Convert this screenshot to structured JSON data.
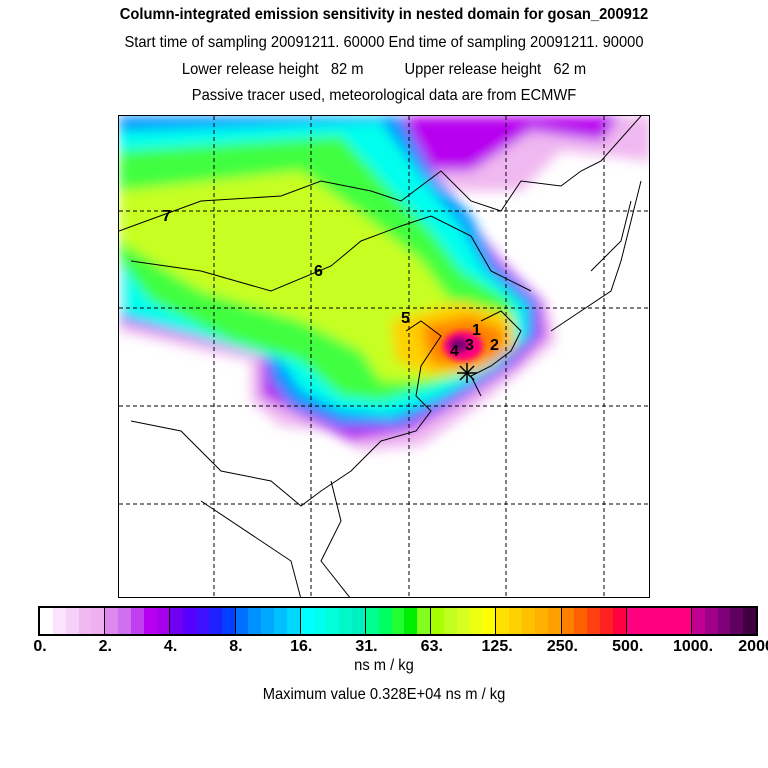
{
  "header": {
    "title": "Column-integrated emission sensitivity in nested domain for gosan_200912",
    "line2": "Start time of sampling 20091211. 60000     End time of sampling 20091211. 90000",
    "line3": "Lower release height   82 m          Upper release height   62 m",
    "line4": "Passive tracer used, meteorological data are from ECMWF"
  },
  "map": {
    "contour_labels": [
      "1",
      "2",
      "3",
      "4",
      "5",
      "6",
      "7"
    ],
    "receptor_marker": "star-icon"
  },
  "colorbar": {
    "ticks": [
      "0.",
      "2.",
      "4.",
      "8.",
      "16.",
      "31.",
      "63.",
      "125.",
      "250.",
      "500.",
      "1000.",
      "2000."
    ],
    "segments": [
      [
        "#ffffff",
        "#fbe4fb",
        "#f6d0f6",
        "#f0b8f0",
        "#eeb0f0"
      ],
      [
        "#dd88ee",
        "#d070ee",
        "#c040f0",
        "#b800f0",
        "#a800ee"
      ],
      [
        "#7000f0",
        "#5800ff",
        "#4010ff",
        "#2020ff",
        "#0040ff"
      ],
      [
        "#0070ff",
        "#0090ff",
        "#00a8ff",
        "#00c0ff",
        "#00d8ff"
      ],
      [
        "#00ffff",
        "#00ffee",
        "#00ffd8",
        "#00f8c8",
        "#00f0c0"
      ],
      [
        "#00ff90",
        "#00ff60",
        "#20ff30",
        "#00ee00",
        "#80ff20"
      ],
      [
        "#a8ff00",
        "#c0ff20",
        "#d8ff20",
        "#eeff10",
        "#ffff00"
      ],
      [
        "#ffe000",
        "#ffd000",
        "#ffc000",
        "#ffb000",
        "#ffa000"
      ],
      [
        "#ff8000",
        "#ff6000",
        "#ff4010",
        "#ff2020",
        "#ff0040"
      ],
      [
        "#ff0080",
        "#ff0080",
        "#ff0080",
        "#ff0080",
        "#ff0080"
      ],
      [
        "#c00090",
        "#a00088",
        "#800078",
        "#600060",
        "#400040"
      ]
    ],
    "unit": "ns m / kg",
    "max_text": "Maximum value  0.328E+04 ns m / kg"
  }
}
